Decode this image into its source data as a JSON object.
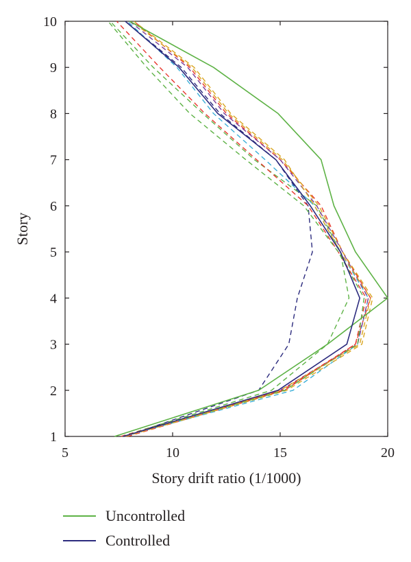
{
  "chart_data": {
    "type": "line",
    "xlabel": "Story drift ratio (1/1000)",
    "ylabel": "Story",
    "xlim": [
      5,
      20
    ],
    "ylim": [
      1,
      10
    ],
    "xticks": [
      "5",
      "10",
      "15",
      "20"
    ],
    "yticks": [
      "1",
      "2",
      "3",
      "4",
      "5",
      "6",
      "7",
      "8",
      "9",
      "10"
    ],
    "grid": false,
    "legend_position": "bottom",
    "y": [
      1,
      2,
      3,
      4,
      5,
      6,
      7,
      8,
      9,
      10
    ],
    "series": [
      {
        "name": "Uncontrolled",
        "style": "solid",
        "color": "#5db245",
        "x": [
          7.3,
          14.0,
          17.2,
          20.0,
          18.5,
          17.5,
          16.9,
          14.9,
          11.9,
          8.0
        ]
      },
      {
        "name": "Controlled",
        "style": "solid",
        "color": "#2b2a7d",
        "x": [
          7.7,
          14.9,
          18.1,
          18.7,
          17.8,
          16.4,
          14.8,
          12.1,
          10.3,
          7.8
        ]
      },
      {
        "style": "dashed",
        "color": "#2b2a7d",
        "x": [
          7.8,
          14.0,
          15.4,
          15.8,
          16.5,
          16.3,
          14.8,
          12.2,
          10.4,
          7.8
        ]
      },
      {
        "style": "dashed",
        "color": "#5db245",
        "x": [
          7.6,
          14.6,
          17.2,
          18.2,
          17.8,
          16.7,
          13.8,
          11.4,
          9.1,
          7.1
        ]
      },
      {
        "style": "dashed",
        "color": "#e8362d",
        "x": [
          7.9,
          15.2,
          18.5,
          19.2,
          17.9,
          16.9,
          15.0,
          12.5,
          10.8,
          8.2
        ]
      },
      {
        "style": "dashed",
        "color": "#3aaed8",
        "x": [
          7.7,
          15.6,
          18.6,
          19.1,
          17.8,
          16.6,
          14.3,
          11.9,
          10.2,
          7.9
        ]
      },
      {
        "style": "dashed",
        "color": "#d9a520",
        "x": [
          7.8,
          15.3,
          18.8,
          19.3,
          17.9,
          16.8,
          15.1,
          12.6,
          10.9,
          8.1
        ]
      },
      {
        "style": "dashed",
        "color": "#7d3f98",
        "x": [
          7.7,
          15.0,
          18.6,
          19.1,
          17.9,
          16.7,
          15.0,
          12.4,
          10.7,
          8.0
        ]
      },
      {
        "style": "dashed",
        "color": "#e8362d",
        "x": [
          7.6,
          15.1,
          18.5,
          19.0,
          17.7,
          16.3,
          13.9,
          11.5,
          9.4,
          7.4
        ]
      },
      {
        "style": "dashed",
        "color": "#5db245",
        "x": [
          7.7,
          15.2,
          18.6,
          18.9,
          17.7,
          16.1,
          13.4,
          10.8,
          8.8,
          7.0
        ]
      },
      {
        "style": "dashed",
        "color": "#d9a520",
        "x": [
          7.8,
          15.0,
          18.7,
          19.2,
          17.8,
          16.6,
          15.2,
          12.7,
          11.0,
          8.2
        ]
      }
    ]
  }
}
